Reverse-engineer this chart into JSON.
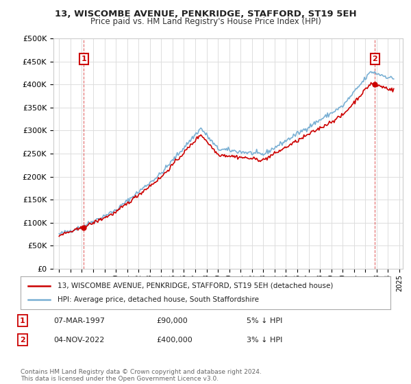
{
  "title": "13, WISCOMBE AVENUE, PENKRIDGE, STAFFORD, ST19 5EH",
  "subtitle": "Price paid vs. HM Land Registry's House Price Index (HPI)",
  "legend_line1": "13, WISCOMBE AVENUE, PENKRIDGE, STAFFORD, ST19 5EH (detached house)",
  "legend_line2": "HPI: Average price, detached house, South Staffordshire",
  "annotation1_date": "07-MAR-1997",
  "annotation1_price": "£90,000",
  "annotation1_hpi": "5% ↓ HPI",
  "annotation2_date": "04-NOV-2022",
  "annotation2_price": "£400,000",
  "annotation2_hpi": "3% ↓ HPI",
  "footer": "Contains HM Land Registry data © Crown copyright and database right 2024.\nThis data is licensed under the Open Government Licence v3.0.",
  "price_color": "#cc0000",
  "hpi_color": "#7ab0d4",
  "ylim": [
    0,
    500000
  ],
  "yticks": [
    0,
    50000,
    100000,
    150000,
    200000,
    250000,
    300000,
    350000,
    400000,
    450000,
    500000
  ],
  "background_color": "#ffffff",
  "grid_color": "#dddddd",
  "sale1_year": 1997.17,
  "sale1_value": 90000,
  "sale2_year": 2022.84,
  "sale2_value": 400000
}
